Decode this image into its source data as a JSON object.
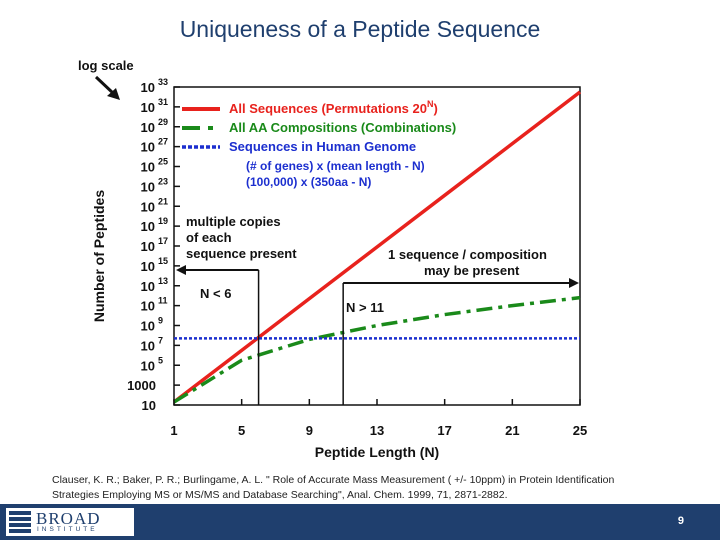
{
  "slide": {
    "title": "Uniqueness of a Peptide Sequence",
    "citation_line1": "Clauser, K. R.; Baker, P. R.; Burlingame, A. L. \" Role of Accurate Mass Measurement ( +/- 10ppm) in Protein Identification",
    "citation_line2": "Strategies Employing MS or MS/MS and Database Searching\", Anal. Chem. 1999, 71, 2871-2882.",
    "page_number": "9",
    "logo_name": "BROAD",
    "logo_sub": "INSTITUTE"
  },
  "chart_data": {
    "type": "line",
    "xlabel": "Peptide Length (N)",
    "ylabel": "Number of Peptides",
    "yscale": "log",
    "xlim": [
      1,
      25
    ],
    "ylim_log10": [
      1,
      33
    ],
    "x_ticks": [
      "1",
      "5",
      "9",
      "13",
      "17",
      "21",
      "25"
    ],
    "y_ticks": [
      {
        "exp": 33,
        "base": "10",
        "sup": "33"
      },
      {
        "exp": 31,
        "base": "10",
        "sup": "31"
      },
      {
        "exp": 29,
        "base": "10",
        "sup": "29"
      },
      {
        "exp": 27,
        "base": "10",
        "sup": "27"
      },
      {
        "exp": 25,
        "base": "10",
        "sup": "25"
      },
      {
        "exp": 23,
        "base": "10",
        "sup": "23"
      },
      {
        "exp": 21,
        "base": "10",
        "sup": "21"
      },
      {
        "exp": 19,
        "base": "10",
        "sup": "19"
      },
      {
        "exp": 17,
        "base": "10",
        "sup": "17"
      },
      {
        "exp": 15,
        "base": "10",
        "sup": "15"
      },
      {
        "exp": 13,
        "base": "10",
        "sup": "13"
      },
      {
        "exp": 11,
        "base": "10",
        "sup": "11"
      },
      {
        "exp": 9,
        "base": "10",
        "sup": "9"
      },
      {
        "exp": 7,
        "base": "10",
        "sup": "7"
      },
      {
        "exp": 5,
        "base": "10",
        "sup": "5"
      },
      {
        "exp": 3,
        "base": "1000",
        "sup": ""
      },
      {
        "exp": 1,
        "base": "10",
        "sup": ""
      }
    ],
    "series": [
      {
        "color": "#e8221d",
        "dash": "solid",
        "x": [
          1,
          5,
          9,
          13,
          17,
          21,
          25
        ],
        "log10_y": [
          1.3,
          6.5,
          11.7,
          16.9,
          22.1,
          27.3,
          32.5
        ]
      },
      {
        "color": "#1a8a1a",
        "dash": "dashdot",
        "x": [
          1,
          5,
          9,
          13,
          17,
          21,
          25
        ],
        "log10_y": [
          1.3,
          5.5,
          7.6,
          9.0,
          10.1,
          11.0,
          11.8
        ]
      },
      {
        "color": "#1c2fcf",
        "dash": "dotted",
        "x": [
          1,
          25
        ],
        "log10_y": [
          7.7,
          7.7
        ]
      }
    ],
    "legend": [
      {
        "label": "All Sequences    (Permutations    20",
        "sup": "N",
        "suffix": ")",
        "color": "#e8221d"
      },
      {
        "label": "All AA Compositions (Combinations)",
        "sup": "",
        "suffix": "",
        "color": "#1a8a1a"
      },
      {
        "label": "Sequences in Human Genome",
        "sup": "",
        "suffix": "",
        "color": "#1c2fcf"
      }
    ],
    "legend_note_line1": "(# of genes) x (mean  length - N)",
    "legend_note_line2": "(100,000) x (350aa - N)",
    "annotations": {
      "log_scale": "log scale",
      "multiple_copies": [
        "multiple copies",
        "of each",
        "sequence present"
      ],
      "one_sequence": [
        "1 sequence / composition",
        "may be present"
      ],
      "n_lt": "N < 6",
      "n_gt": "N > 11"
    }
  }
}
